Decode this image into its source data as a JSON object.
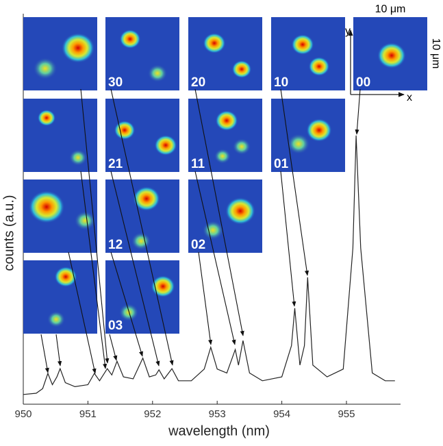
{
  "chart_data": {
    "type": "line",
    "xlabel": "wavelength (nm)",
    "ylabel": "counts (a.u.)",
    "x": [
      950.0,
      950.2,
      950.3,
      950.38,
      950.45,
      950.52,
      950.57,
      950.65,
      950.8,
      951.0,
      951.1,
      951.18,
      951.3,
      951.37,
      951.45,
      951.55,
      951.7,
      951.85,
      951.95,
      952.05,
      952.1,
      952.18,
      952.3,
      952.4,
      952.6,
      952.8,
      952.9,
      953.0,
      953.15,
      953.28,
      953.33,
      953.4,
      953.5,
      953.7,
      954.0,
      954.15,
      954.2,
      954.28,
      954.35,
      954.4,
      954.48,
      954.7,
      954.95,
      955.1,
      955.15,
      955.22,
      955.4,
      955.6,
      955.75
    ],
    "series": [
      {
        "color": "#222222",
        "values": [
          2.5,
          2.8,
          4,
          7.9,
          5,
          7,
          9.1,
          5.5,
          4.5,
          5,
          7.9,
          6,
          9.1,
          7.5,
          11,
          7,
          6.5,
          11.8,
          7,
          7.5,
          8.8,
          6.5,
          9.1,
          6,
          6,
          9,
          14.6,
          9,
          8,
          14,
          10,
          16.3,
          8,
          6,
          7,
          15,
          24.6,
          10,
          15,
          32.5,
          10,
          7,
          9,
          40,
          68.8,
          40,
          8,
          6,
          6
        ]
      }
    ],
    "xlim": [
      950,
      955.8
    ],
    "xticks": [
      950,
      951,
      952,
      953,
      954,
      955
    ],
    "ylim": [
      0,
      100
    ],
    "insets": [
      "30",
      "20",
      "10",
      "00",
      "21",
      "11",
      "01",
      "12",
      "02",
      "03"
    ],
    "scale_labels": [
      "10 μm",
      "10 μm"
    ],
    "axis_labels": [
      "x",
      "y"
    ]
  }
}
